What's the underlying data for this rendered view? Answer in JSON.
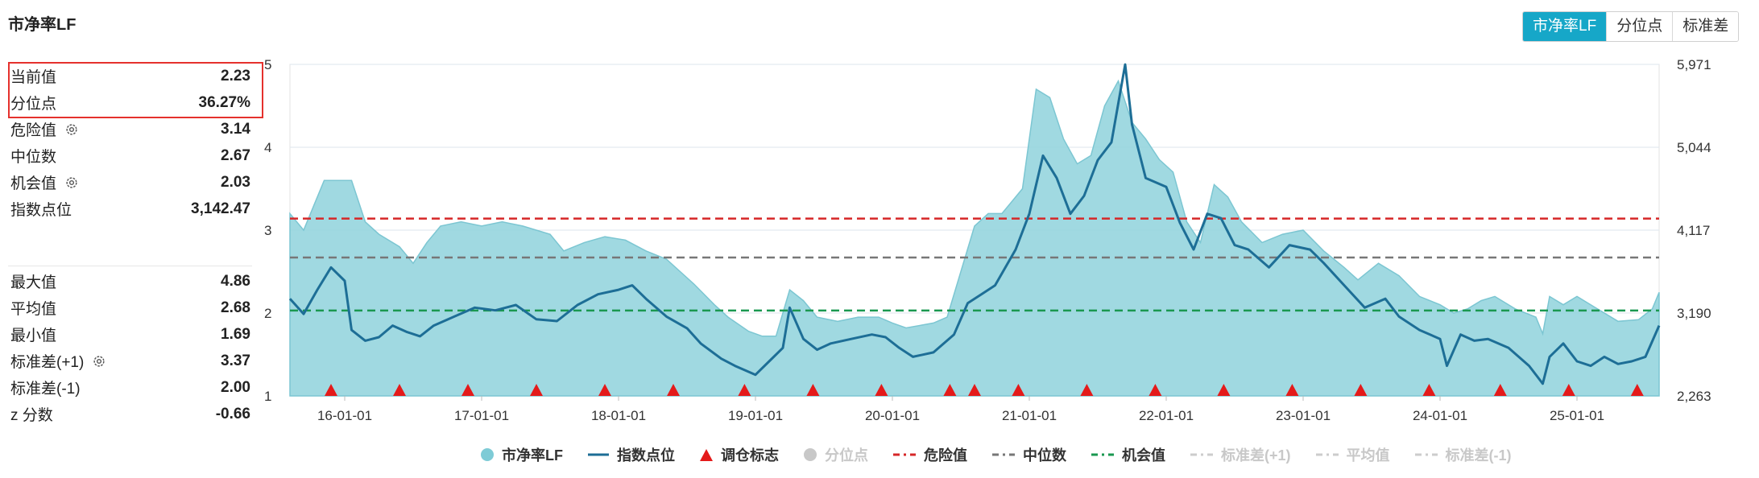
{
  "title": "市净率LF",
  "toggle": {
    "options": [
      "市净率LF",
      "分位点",
      "标准差"
    ],
    "active": 0
  },
  "stats_top": [
    {
      "label": "当前值",
      "value": "2.23",
      "gear": false
    },
    {
      "label": "分位点",
      "value": "36.27%",
      "gear": false
    },
    {
      "label": "危险值",
      "value": "3.14",
      "gear": true
    },
    {
      "label": "中位数",
      "value": "2.67",
      "gear": false
    },
    {
      "label": "机会值",
      "value": "2.03",
      "gear": true
    },
    {
      "label": "指数点位",
      "value": "3,142.47",
      "gear": false
    }
  ],
  "stats_bottom": [
    {
      "label": "最大值",
      "value": "4.86",
      "gear": false
    },
    {
      "label": "平均值",
      "value": "2.68",
      "gear": false
    },
    {
      "label": "最小值",
      "value": "1.69",
      "gear": false
    },
    {
      "label": "标准差(+1)",
      "value": "3.37",
      "gear": true
    },
    {
      "label": "标准差(-1)",
      "value": "2.00",
      "gear": false
    },
    {
      "label": "z 分数",
      "value": "-0.66",
      "gear": false
    }
  ],
  "legend": [
    {
      "label": "市净率LF",
      "kind": "circle",
      "color": "#7ecbd6",
      "active": true
    },
    {
      "label": "指数点位",
      "kind": "line",
      "color": "#1d6e96",
      "active": true
    },
    {
      "label": "调仓标志",
      "kind": "triangle",
      "color": "#e41a1a",
      "active": true
    },
    {
      "label": "分位点",
      "kind": "circle",
      "color": "#c8c8c8",
      "active": false
    },
    {
      "label": "危险值",
      "kind": "dash",
      "color": "#d62728",
      "active": true
    },
    {
      "label": "中位数",
      "kind": "dash",
      "color": "#777777",
      "active": true
    },
    {
      "label": "机会值",
      "kind": "dash",
      "color": "#1a9850",
      "active": true
    },
    {
      "label": "标准差(+1)",
      "kind": "dash",
      "color": "#cccccc",
      "active": false
    },
    {
      "label": "平均值",
      "kind": "dash",
      "color": "#cccccc",
      "active": false
    },
    {
      "label": "标准差(-1)",
      "kind": "dash",
      "color": "#cccccc",
      "active": false
    }
  ],
  "chart_data": {
    "type": "area",
    "x_ticks": [
      "16-01-01",
      "17-01-01",
      "18-01-01",
      "19-01-01",
      "20-01-01",
      "21-01-01",
      "22-01-01",
      "23-01-01",
      "24-01-01",
      "25-01-01"
    ],
    "y_left_ticks": [
      "1",
      "2",
      "3",
      "4",
      "5"
    ],
    "y_right_ticks": [
      "2,263",
      "3,190",
      "4,117",
      "5,044",
      "5,971"
    ],
    "y_left_range": [
      1,
      5
    ],
    "y_right_range": [
      2263,
      5971
    ],
    "x_range": [
      2015.6,
      2025.6
    ],
    "reference_lines": [
      {
        "name": "危险值",
        "value": 3.14,
        "color": "#d62728"
      },
      {
        "name": "中位数",
        "value": 2.67,
        "color": "#777777"
      },
      {
        "name": "机会值",
        "value": 2.03,
        "color": "#1a9850"
      }
    ],
    "series": [
      {
        "name": "市净率LF",
        "axis": "left",
        "color": "#8fd2dc",
        "points": [
          [
            2015.6,
            3.2
          ],
          [
            2015.7,
            3.0
          ],
          [
            2015.85,
            3.6
          ],
          [
            2016.05,
            3.6
          ],
          [
            2016.15,
            3.1
          ],
          [
            2016.25,
            2.95
          ],
          [
            2016.4,
            2.8
          ],
          [
            2016.5,
            2.6
          ],
          [
            2016.6,
            2.85
          ],
          [
            2016.7,
            3.05
          ],
          [
            2016.85,
            3.1
          ],
          [
            2017.0,
            3.05
          ],
          [
            2017.15,
            3.1
          ],
          [
            2017.3,
            3.05
          ],
          [
            2017.5,
            2.95
          ],
          [
            2017.6,
            2.75
          ],
          [
            2017.75,
            2.85
          ],
          [
            2017.9,
            2.92
          ],
          [
            2018.05,
            2.88
          ],
          [
            2018.2,
            2.75
          ],
          [
            2018.35,
            2.65
          ],
          [
            2018.45,
            2.5
          ],
          [
            2018.55,
            2.35
          ],
          [
            2018.7,
            2.1
          ],
          [
            2018.8,
            1.95
          ],
          [
            2018.95,
            1.78
          ],
          [
            2019.05,
            1.72
          ],
          [
            2019.15,
            1.72
          ],
          [
            2019.25,
            2.28
          ],
          [
            2019.35,
            2.15
          ],
          [
            2019.45,
            1.95
          ],
          [
            2019.6,
            1.9
          ],
          [
            2019.75,
            1.95
          ],
          [
            2019.9,
            1.95
          ],
          [
            2020.0,
            1.88
          ],
          [
            2020.1,
            1.82
          ],
          [
            2020.3,
            1.88
          ],
          [
            2020.4,
            1.95
          ],
          [
            2020.5,
            2.5
          ],
          [
            2020.6,
            3.05
          ],
          [
            2020.7,
            3.2
          ],
          [
            2020.8,
            3.2
          ],
          [
            2020.95,
            3.5
          ],
          [
            2021.05,
            4.7
          ],
          [
            2021.15,
            4.6
          ],
          [
            2021.25,
            4.1
          ],
          [
            2021.35,
            3.8
          ],
          [
            2021.45,
            3.9
          ],
          [
            2021.55,
            4.5
          ],
          [
            2021.65,
            4.8
          ],
          [
            2021.75,
            4.3
          ],
          [
            2021.85,
            4.1
          ],
          [
            2021.95,
            3.85
          ],
          [
            2022.05,
            3.7
          ],
          [
            2022.15,
            3.1
          ],
          [
            2022.25,
            2.85
          ],
          [
            2022.35,
            3.55
          ],
          [
            2022.45,
            3.4
          ],
          [
            2022.55,
            3.1
          ],
          [
            2022.7,
            2.85
          ],
          [
            2022.85,
            2.95
          ],
          [
            2023.0,
            3.0
          ],
          [
            2023.15,
            2.75
          ],
          [
            2023.3,
            2.55
          ],
          [
            2023.4,
            2.4
          ],
          [
            2023.55,
            2.6
          ],
          [
            2023.7,
            2.45
          ],
          [
            2023.85,
            2.2
          ],
          [
            2024.0,
            2.1
          ],
          [
            2024.1,
            2.0
          ],
          [
            2024.2,
            2.05
          ],
          [
            2024.3,
            2.15
          ],
          [
            2024.4,
            2.2
          ],
          [
            2024.55,
            2.05
          ],
          [
            2024.7,
            1.95
          ],
          [
            2024.75,
            1.75
          ],
          [
            2024.8,
            2.2
          ],
          [
            2024.9,
            2.1
          ],
          [
            2025.0,
            2.2
          ],
          [
            2025.15,
            2.05
          ],
          [
            2025.3,
            1.9
          ],
          [
            2025.45,
            1.92
          ],
          [
            2025.55,
            2.05
          ],
          [
            2025.6,
            2.25
          ]
        ]
      },
      {
        "name": "指数点位",
        "axis": "right",
        "color": "#1d6e96",
        "points": [
          [
            2015.6,
            3350
          ],
          [
            2015.7,
            3180
          ],
          [
            2015.8,
            3450
          ],
          [
            2015.9,
            3700
          ],
          [
            2016.0,
            3550
          ],
          [
            2016.05,
            3000
          ],
          [
            2016.15,
            2880
          ],
          [
            2016.25,
            2920
          ],
          [
            2016.35,
            3050
          ],
          [
            2016.45,
            2980
          ],
          [
            2016.55,
            2930
          ],
          [
            2016.65,
            3050
          ],
          [
            2016.8,
            3150
          ],
          [
            2016.95,
            3250
          ],
          [
            2017.1,
            3220
          ],
          [
            2017.25,
            3280
          ],
          [
            2017.4,
            3120
          ],
          [
            2017.55,
            3100
          ],
          [
            2017.7,
            3280
          ],
          [
            2017.85,
            3400
          ],
          [
            2018.0,
            3450
          ],
          [
            2018.1,
            3500
          ],
          [
            2018.2,
            3350
          ],
          [
            2018.35,
            3150
          ],
          [
            2018.5,
            3020
          ],
          [
            2018.6,
            2850
          ],
          [
            2018.75,
            2680
          ],
          [
            2018.85,
            2600
          ],
          [
            2019.0,
            2500
          ],
          [
            2019.1,
            2650
          ],
          [
            2019.2,
            2800
          ],
          [
            2019.25,
            3250
          ],
          [
            2019.35,
            2900
          ],
          [
            2019.45,
            2780
          ],
          [
            2019.55,
            2850
          ],
          [
            2019.7,
            2900
          ],
          [
            2019.85,
            2950
          ],
          [
            2019.95,
            2920
          ],
          [
            2020.05,
            2800
          ],
          [
            2020.15,
            2700
          ],
          [
            2020.3,
            2750
          ],
          [
            2020.45,
            2950
          ],
          [
            2020.55,
            3300
          ],
          [
            2020.65,
            3400
          ],
          [
            2020.75,
            3500
          ],
          [
            2020.9,
            3900
          ],
          [
            2021.0,
            4300
          ],
          [
            2021.1,
            4950
          ],
          [
            2021.2,
            4700
          ],
          [
            2021.3,
            4300
          ],
          [
            2021.4,
            4500
          ],
          [
            2021.5,
            4900
          ],
          [
            2021.6,
            5100
          ],
          [
            2021.7,
            5970
          ],
          [
            2021.75,
            5300
          ],
          [
            2021.85,
            4700
          ],
          [
            2022.0,
            4600
          ],
          [
            2022.1,
            4200
          ],
          [
            2022.2,
            3900
          ],
          [
            2022.3,
            4300
          ],
          [
            2022.4,
            4250
          ],
          [
            2022.5,
            3950
          ],
          [
            2022.6,
            3900
          ],
          [
            2022.75,
            3700
          ],
          [
            2022.9,
            3950
          ],
          [
            2023.05,
            3900
          ],
          [
            2023.15,
            3750
          ],
          [
            2023.3,
            3500
          ],
          [
            2023.45,
            3250
          ],
          [
            2023.6,
            3350
          ],
          [
            2023.7,
            3150
          ],
          [
            2023.85,
            3000
          ],
          [
            2024.0,
            2900
          ],
          [
            2024.05,
            2600
          ],
          [
            2024.15,
            2950
          ],
          [
            2024.25,
            2880
          ],
          [
            2024.35,
            2900
          ],
          [
            2024.5,
            2800
          ],
          [
            2024.65,
            2600
          ],
          [
            2024.75,
            2400
          ],
          [
            2024.8,
            2700
          ],
          [
            2024.9,
            2850
          ],
          [
            2025.0,
            2650
          ],
          [
            2025.1,
            2600
          ],
          [
            2025.2,
            2700
          ],
          [
            2025.3,
            2620
          ],
          [
            2025.4,
            2650
          ],
          [
            2025.5,
            2700
          ],
          [
            2025.6,
            3050
          ]
        ]
      }
    ],
    "rebalance_markers_x": [
      2015.9,
      2016.4,
      2016.9,
      2017.4,
      2017.9,
      2018.4,
      2018.92,
      2019.42,
      2019.92,
      2020.42,
      2020.6,
      2020.92,
      2021.42,
      2021.92,
      2022.42,
      2022.92,
      2023.42,
      2023.92,
      2024.44,
      2024.94,
      2025.44
    ]
  }
}
